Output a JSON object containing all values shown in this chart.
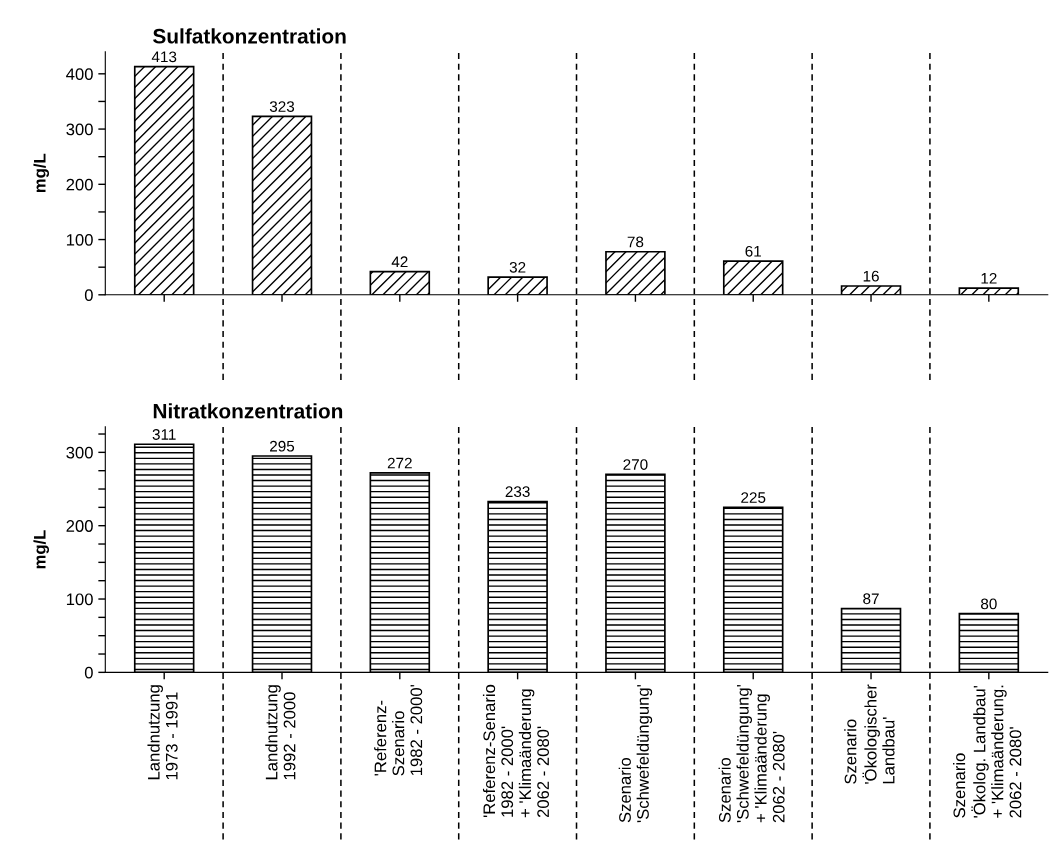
{
  "chart_data": [
    {
      "type": "bar",
      "title": "Sulfatkonzentration",
      "ylabel": "mg/L",
      "categories": [
        null,
        null,
        null,
        null,
        null,
        null,
        null,
        null
      ],
      "values": [
        413,
        323,
        42,
        32,
        78,
        61,
        16,
        12
      ],
      "color": "#000000",
      "data_labels": true,
      "ylim": [
        0,
        440
      ],
      "yticks": [
        0,
        {
          "value": 50,
          "label": null
        },
        100,
        {
          "value": 150,
          "label": null
        },
        200,
        {
          "value": 250,
          "label": null
        },
        300,
        {
          "value": 350,
          "label": null
        },
        400
      ],
      "tick_labels": "y"
    },
    {
      "type": "bar",
      "title": "Nitratkonzentration",
      "ylabel": "mg/L",
      "categories": [
        "Landnutzung\n1973 - 1991",
        "Landnutzung\n1992 - 2000",
        "'Referenz-\nSzenario\n1982 - 2000'",
        "'Referenz-Senario\n1982 - 2000'\n+ 'Klimaänderung\n2062 - 2080'",
        "Szenario\n'Schwefeldüngung'",
        "Szenario\n'Schwefeldüngung'\n+ 'Klimaänderung\n2062 - 2080'",
        "Szenario\n'Ökologischer\nLandbau'",
        "Szenario\n'Ökolog. Landbau'\n+ 'Klimaänderung.\n2062 - 2080'"
      ],
      "values": [
        311,
        295,
        272,
        233,
        270,
        225,
        87,
        80
      ],
      "color": "#000000",
      "data_labels": true,
      "ylim": [
        0,
        335
      ],
      "yticks": [
        0,
        {
          "value": 25,
          "label": null
        },
        {
          "value": 50,
          "label": null
        },
        {
          "value": 75,
          "label": null
        },
        100,
        {
          "value": 125,
          "label": null
        },
        {
          "value": 150,
          "label": null
        },
        {
          "value": 175,
          "label": null
        },
        200,
        {
          "value": 225,
          "label": null
        },
        {
          "value": 250,
          "label": null
        },
        {
          "value": 275,
          "label": null
        },
        300,
        {
          "value": 325,
          "label": null
        }
      ]
    }
  ]
}
